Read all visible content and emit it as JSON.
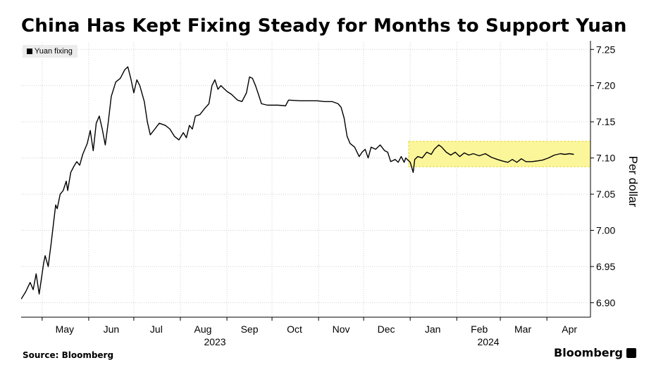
{
  "title": "China Has Kept Fixing Steady for Months to Support Yuan",
  "legend_label": "Yuan fixing",
  "y_axis_label": "Per dollar",
  "source": "Source: Bloomberg",
  "brand": "Bloomberg",
  "colors": {
    "line": "#000000",
    "highlight_fill": "#fbf48a",
    "highlight_stroke": "#e6d72a",
    "grid": "#cfcfcf"
  },
  "chart_data": {
    "type": "line",
    "title": "China Has Kept Fixing Steady for Months to Support Yuan",
    "ylabel": "Per dollar",
    "ylim": [
      6.88,
      7.26
    ],
    "y_ticks": [
      6.9,
      6.95,
      7.0,
      7.05,
      7.1,
      7.15,
      7.2,
      7.25
    ],
    "y_tick_labels": [
      "6.90",
      "6.95",
      "7.00",
      "7.05",
      "7.10",
      "7.15",
      "7.20",
      "7.25"
    ],
    "x_range": [
      "2023-04-17",
      "2024-04-30"
    ],
    "x_ticks": [
      {
        "label": "May",
        "date": "2023-05-16"
      },
      {
        "label": "Jun",
        "date": "2023-06-16"
      },
      {
        "label": "Jul",
        "date": "2023-07-16"
      },
      {
        "label": "Aug",
        "date": "2023-08-16"
      },
      {
        "label": "Sep",
        "date": "2023-09-16"
      },
      {
        "label": "Oct",
        "date": "2023-10-16"
      },
      {
        "label": "Nov",
        "date": "2023-11-16"
      },
      {
        "label": "Dec",
        "date": "2023-12-16"
      },
      {
        "label": "Jan",
        "date": "2024-01-16"
      },
      {
        "label": "Feb",
        "date": "2024-02-16"
      },
      {
        "label": "Mar",
        "date": "2024-03-16"
      },
      {
        "label": "Apr",
        "date": "2024-04-16"
      }
    ],
    "grid_dates": [
      "2023-05-01",
      "2023-06-01",
      "2023-07-01",
      "2023-08-01",
      "2023-09-01",
      "2023-10-01",
      "2023-11-01",
      "2023-12-01",
      "2024-01-01",
      "2024-02-01",
      "2024-03-01",
      "2024-04-01"
    ],
    "year_labels": [
      {
        "label": "2023",
        "date": "2023-08-24"
      },
      {
        "label": "2024",
        "date": "2024-02-22"
      }
    ],
    "grid": true,
    "legend_position": "top-left",
    "highlight": {
      "x0": "2023-12-31",
      "x1": "2024-04-30",
      "y0": 7.088,
      "y1": 7.123
    },
    "series": [
      {
        "name": "Yuan fixing",
        "points": [
          [
            "2023-04-17",
            6.905
          ],
          [
            "2023-04-20",
            6.915
          ],
          [
            "2023-04-23",
            6.928
          ],
          [
            "2023-04-25",
            6.918
          ],
          [
            "2023-04-27",
            6.94
          ],
          [
            "2023-04-29",
            6.912
          ],
          [
            "2023-05-02",
            6.955
          ],
          [
            "2023-05-03",
            6.965
          ],
          [
            "2023-05-05",
            6.95
          ],
          [
            "2023-05-07",
            6.982
          ],
          [
            "2023-05-10",
            7.035
          ],
          [
            "2023-05-11",
            7.03
          ],
          [
            "2023-05-13",
            7.05
          ],
          [
            "2023-05-15",
            7.055
          ],
          [
            "2023-05-17",
            7.068
          ],
          [
            "2023-05-18",
            7.055
          ],
          [
            "2023-05-20",
            7.08
          ],
          [
            "2023-05-22",
            7.088
          ],
          [
            "2023-05-24",
            7.095
          ],
          [
            "2023-05-26",
            7.09
          ],
          [
            "2023-05-28",
            7.105
          ],
          [
            "2023-05-31",
            7.12
          ],
          [
            "2023-06-02",
            7.138
          ],
          [
            "2023-06-04",
            7.11
          ],
          [
            "2023-06-06",
            7.148
          ],
          [
            "2023-06-08",
            7.158
          ],
          [
            "2023-06-10",
            7.14
          ],
          [
            "2023-06-12",
            7.118
          ],
          [
            "2023-06-14",
            7.15
          ],
          [
            "2023-06-16",
            7.185
          ],
          [
            "2023-06-19",
            7.205
          ],
          [
            "2023-06-22",
            7.21
          ],
          [
            "2023-06-25",
            7.222
          ],
          [
            "2023-06-27",
            7.226
          ],
          [
            "2023-06-29",
            7.21
          ],
          [
            "2023-07-01",
            7.19
          ],
          [
            "2023-07-03",
            7.208
          ],
          [
            "2023-07-05",
            7.2
          ],
          [
            "2023-07-08",
            7.178
          ],
          [
            "2023-07-10",
            7.15
          ],
          [
            "2023-07-12",
            7.132
          ],
          [
            "2023-07-15",
            7.14
          ],
          [
            "2023-07-18",
            7.148
          ],
          [
            "2023-07-22",
            7.145
          ],
          [
            "2023-07-25",
            7.14
          ],
          [
            "2023-07-28",
            7.13
          ],
          [
            "2023-07-31",
            7.125
          ],
          [
            "2023-08-03",
            7.135
          ],
          [
            "2023-08-05",
            7.128
          ],
          [
            "2023-08-07",
            7.145
          ],
          [
            "2023-08-09",
            7.14
          ],
          [
            "2023-08-11",
            7.158
          ],
          [
            "2023-08-14",
            7.16
          ],
          [
            "2023-08-17",
            7.168
          ],
          [
            "2023-08-20",
            7.175
          ],
          [
            "2023-08-22",
            7.2
          ],
          [
            "2023-08-24",
            7.208
          ],
          [
            "2023-08-26",
            7.195
          ],
          [
            "2023-08-28",
            7.2
          ],
          [
            "2023-09-01",
            7.192
          ],
          [
            "2023-09-04",
            7.188
          ],
          [
            "2023-09-08",
            7.18
          ],
          [
            "2023-09-11",
            7.178
          ],
          [
            "2023-09-14",
            7.19
          ],
          [
            "2023-09-16",
            7.212
          ],
          [
            "2023-09-18",
            7.21
          ],
          [
            "2023-09-20",
            7.2
          ],
          [
            "2023-09-22",
            7.188
          ],
          [
            "2023-09-24",
            7.175
          ],
          [
            "2023-09-28",
            7.173
          ],
          [
            "2023-10-05",
            7.173
          ],
          [
            "2023-10-10",
            7.172
          ],
          [
            "2023-10-12",
            7.18
          ],
          [
            "2023-10-20",
            7.179
          ],
          [
            "2023-10-31",
            7.179
          ],
          [
            "2023-11-05",
            7.178
          ],
          [
            "2023-11-10",
            7.178
          ],
          [
            "2023-11-14",
            7.175
          ],
          [
            "2023-11-16",
            7.17
          ],
          [
            "2023-11-18",
            7.155
          ],
          [
            "2023-11-20",
            7.13
          ],
          [
            "2023-11-22",
            7.12
          ],
          [
            "2023-11-25",
            7.115
          ],
          [
            "2023-11-28",
            7.102
          ],
          [
            "2023-11-30",
            7.108
          ],
          [
            "2023-12-02",
            7.112
          ],
          [
            "2023-12-04",
            7.1
          ],
          [
            "2023-12-06",
            7.115
          ],
          [
            "2023-12-09",
            7.112
          ],
          [
            "2023-12-12",
            7.118
          ],
          [
            "2023-12-15",
            7.11
          ],
          [
            "2023-12-17",
            7.108
          ],
          [
            "2023-12-19",
            7.095
          ],
          [
            "2023-12-22",
            7.098
          ],
          [
            "2023-12-24",
            7.094
          ],
          [
            "2023-12-26",
            7.102
          ],
          [
            "2023-12-28",
            7.094
          ],
          [
            "2023-12-29",
            7.1
          ],
          [
            "2024-01-01",
            7.094
          ],
          [
            "2024-01-03",
            7.08
          ],
          [
            "2024-01-04",
            7.098
          ],
          [
            "2024-01-06",
            7.102
          ],
          [
            "2024-01-09",
            7.1
          ],
          [
            "2024-01-12",
            7.108
          ],
          [
            "2024-01-15",
            7.105
          ],
          [
            "2024-01-17",
            7.112
          ],
          [
            "2024-01-20",
            7.118
          ],
          [
            "2024-01-22",
            7.115
          ],
          [
            "2024-01-25",
            7.108
          ],
          [
            "2024-01-28",
            7.104
          ],
          [
            "2024-01-31",
            7.108
          ],
          [
            "2024-02-03",
            7.102
          ],
          [
            "2024-02-06",
            7.107
          ],
          [
            "2024-02-09",
            7.104
          ],
          [
            "2024-02-12",
            7.106
          ],
          [
            "2024-02-16",
            7.103
          ],
          [
            "2024-02-20",
            7.106
          ],
          [
            "2024-02-24",
            7.101
          ],
          [
            "2024-02-28",
            7.098
          ],
          [
            "2024-03-02",
            7.096
          ],
          [
            "2024-03-06",
            7.094
          ],
          [
            "2024-03-09",
            7.098
          ],
          [
            "2024-03-12",
            7.094
          ],
          [
            "2024-03-15",
            7.099
          ],
          [
            "2024-03-18",
            7.095
          ],
          [
            "2024-03-22",
            7.095
          ],
          [
            "2024-03-26",
            7.096
          ],
          [
            "2024-03-29",
            7.097
          ],
          [
            "2024-04-02",
            7.1
          ],
          [
            "2024-04-06",
            7.104
          ],
          [
            "2024-04-10",
            7.106
          ],
          [
            "2024-04-13",
            7.105
          ],
          [
            "2024-04-16",
            7.106
          ],
          [
            "2024-04-19",
            7.105
          ]
        ]
      }
    ]
  }
}
